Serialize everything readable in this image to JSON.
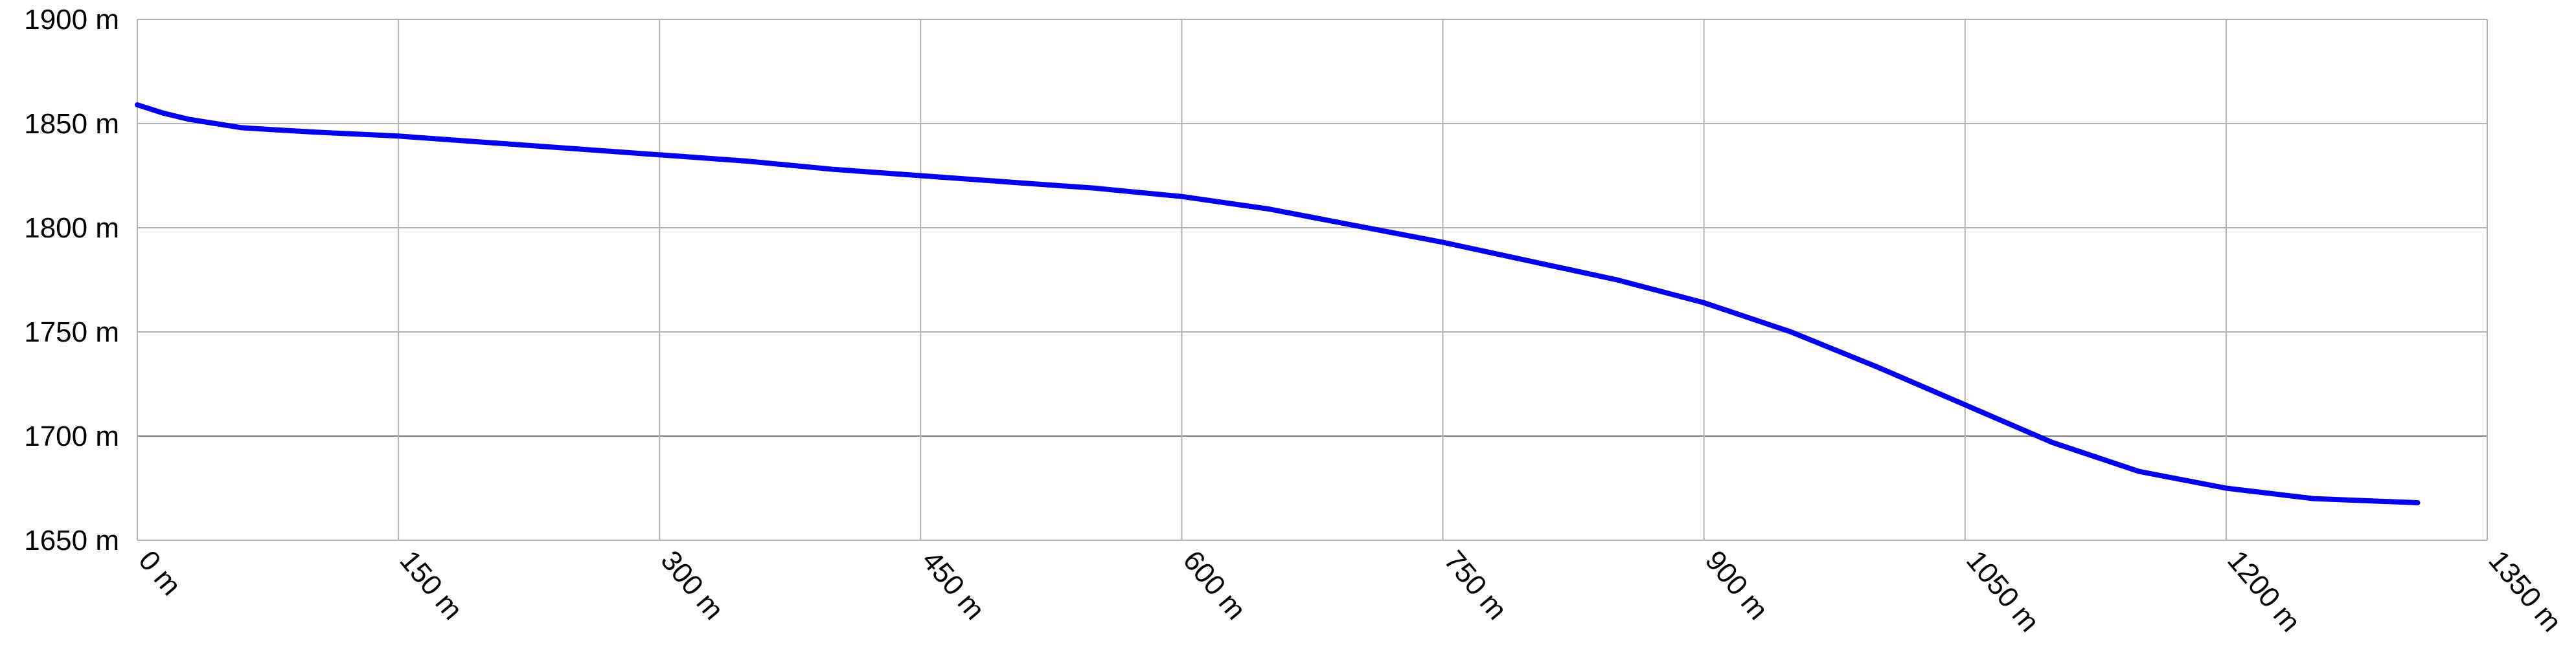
{
  "colors": {
    "line": "#0000ee",
    "grid": "#b3b3b3",
    "background": "#ffffff",
    "text": "#000000"
  },
  "chart_data": {
    "type": "line",
    "title": "",
    "xlabel": "",
    "ylabel": "",
    "xlim": [
      0,
      1350
    ],
    "ylim": [
      1650,
      1900
    ],
    "grid": true,
    "x_ticks": [
      0,
      150,
      300,
      450,
      600,
      750,
      900,
      1050,
      1200,
      1350
    ],
    "x_tick_labels": [
      "0 m",
      "150 m",
      "300 m",
      "450 m",
      "600 m",
      "750 m",
      "900 m",
      "1050 m",
      "1200 m",
      "1350 m"
    ],
    "y_ticks": [
      1650,
      1700,
      1750,
      1800,
      1850,
      1900
    ],
    "y_tick_labels": [
      "1650 m",
      "1700 m",
      "1750 m",
      "1800 m",
      "1850 m",
      "1900 m"
    ],
    "series": [
      {
        "x": [
          0,
          15,
          30,
          45,
          60,
          80,
          100,
          150,
          200,
          250,
          300,
          350,
          400,
          450,
          500,
          550,
          600,
          650,
          700,
          750,
          800,
          850,
          900,
          950,
          1000,
          1050,
          1100,
          1150,
          1200,
          1250,
          1310
        ],
        "values": [
          1859,
          1855,
          1852,
          1850,
          1848,
          1847,
          1846,
          1844,
          1841,
          1838,
          1835,
          1832,
          1828,
          1825,
          1822,
          1819,
          1815,
          1809,
          1801,
          1793,
          1784,
          1775,
          1764,
          1750,
          1733,
          1715,
          1697,
          1683,
          1675,
          1670,
          1668
        ]
      }
    ]
  }
}
